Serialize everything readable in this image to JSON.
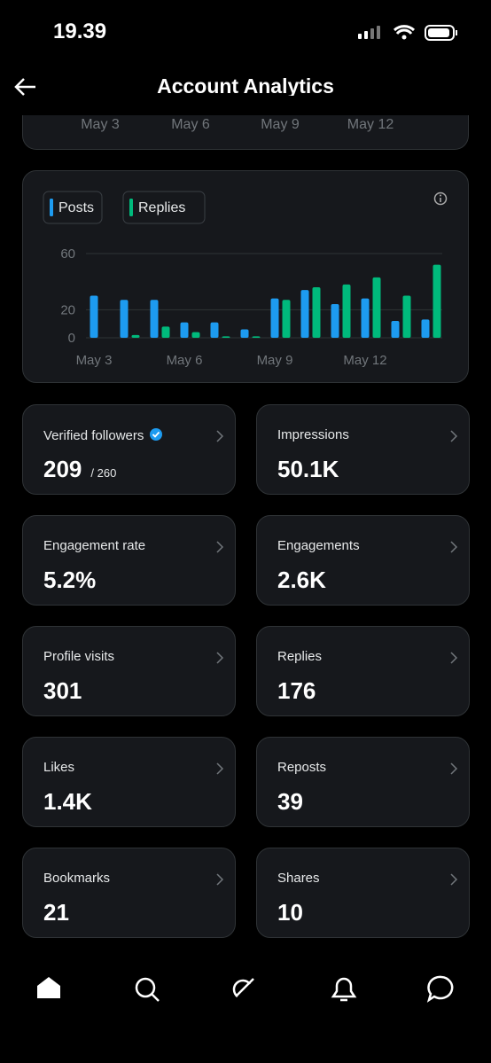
{
  "status_bar": {
    "time": "19.39"
  },
  "header": {
    "title": "Account Analytics"
  },
  "top_card": {
    "x_labels": [
      "May 3",
      "May 6",
      "May 9",
      "May 12"
    ]
  },
  "chart_data": {
    "type": "bar",
    "categories": [
      "May 3",
      null,
      null,
      "May 6",
      null,
      null,
      "May 9",
      null,
      null,
      "May 12",
      null,
      null
    ],
    "series": [
      {
        "name": "Posts",
        "color": "#1d9bf0",
        "values": [
          30,
          27,
          27,
          11,
          11,
          6,
          28,
          34,
          24,
          28,
          12,
          13
        ]
      },
      {
        "name": "Replies",
        "color": "#00ba7c",
        "values": [
          0,
          2,
          8,
          4,
          1,
          1,
          27,
          36,
          38,
          43,
          30,
          52
        ]
      }
    ],
    "ylim": [
      0,
      60
    ],
    "yticks": [
      0,
      20,
      60
    ],
    "grid": true
  },
  "stats": [
    {
      "label": "Verified followers",
      "value": "209",
      "total": "/ 260"
    },
    {
      "label": "Impressions",
      "value": "50.1K"
    },
    {
      "label": "Engagement rate",
      "value": "5.2%"
    },
    {
      "label": "Engagements",
      "value": "2.6K"
    },
    {
      "label": "Profile visits",
      "value": "301"
    },
    {
      "label": "Replies",
      "value": "176"
    },
    {
      "label": "Likes",
      "value": "1.4K"
    },
    {
      "label": "Reposts",
      "value": "39"
    },
    {
      "label": "Bookmarks",
      "value": "21"
    },
    {
      "label": "Shares",
      "value": "10"
    }
  ]
}
